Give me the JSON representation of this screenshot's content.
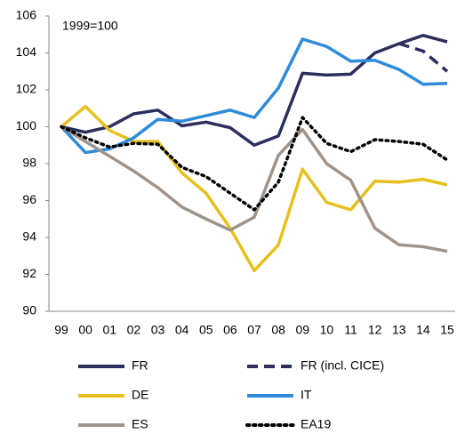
{
  "chart_data": {
    "type": "line",
    "annotation": "1999=100",
    "categories": [
      "99",
      "00",
      "01",
      "02",
      "03",
      "04",
      "05",
      "06",
      "07",
      "08",
      "09",
      "10",
      "11",
      "12",
      "13",
      "14",
      "15"
    ],
    "series": [
      {
        "name": "FR",
        "color": "#2b2f5e",
        "dash": "solid",
        "values": [
          100,
          99.7,
          100,
          100.7,
          100.9,
          100.05,
          100.25,
          99.95,
          99.0,
          99.5,
          102.9,
          102.8,
          102.85,
          104.0,
          104.5,
          104.95,
          104.6
        ]
      },
      {
        "name": "FR (incl. CICE)",
        "color": "#2b2f5e",
        "dash": "dashed",
        "values": [
          null,
          null,
          null,
          null,
          null,
          null,
          null,
          null,
          null,
          null,
          null,
          null,
          null,
          null,
          104.5,
          104.1,
          103.0
        ]
      },
      {
        "name": "DE",
        "color": "#e6c01e",
        "dash": "solid",
        "values": [
          100,
          101.1,
          99.8,
          99.2,
          99.2,
          97.5,
          96.4,
          94.5,
          92.2,
          93.6,
          97.7,
          95.9,
          95.5,
          97.05,
          97.0,
          97.15,
          96.85
        ]
      },
      {
        "name": "IT",
        "color": "#2e8bd9",
        "dash": "solid",
        "values": [
          100,
          98.6,
          98.8,
          99.4,
          100.4,
          100.3,
          100.6,
          100.9,
          100.5,
          102.1,
          104.75,
          104.35,
          103.55,
          103.6,
          103.1,
          102.3,
          102.35
        ]
      },
      {
        "name": "ES",
        "color": "#a0948a",
        "dash": "solid",
        "values": [
          100,
          99.2,
          98.4,
          97.6,
          96.7,
          95.65,
          95.0,
          94.4,
          95.1,
          98.45,
          99.85,
          98.0,
          97.1,
          94.5,
          93.6,
          93.5,
          93.25
        ]
      },
      {
        "name": "EA19",
        "color": "#000000",
        "dash": "dotted",
        "values": [
          100,
          99.4,
          98.9,
          99.1,
          99.05,
          97.8,
          97.3,
          96.4,
          95.5,
          97.0,
          100.5,
          99.1,
          98.65,
          99.3,
          99.2,
          99.05,
          98.2
        ]
      }
    ],
    "ylim": [
      90,
      106
    ],
    "yticks": [
      90,
      92,
      94,
      96,
      98,
      100,
      102,
      104,
      106
    ],
    "grid": false
  }
}
